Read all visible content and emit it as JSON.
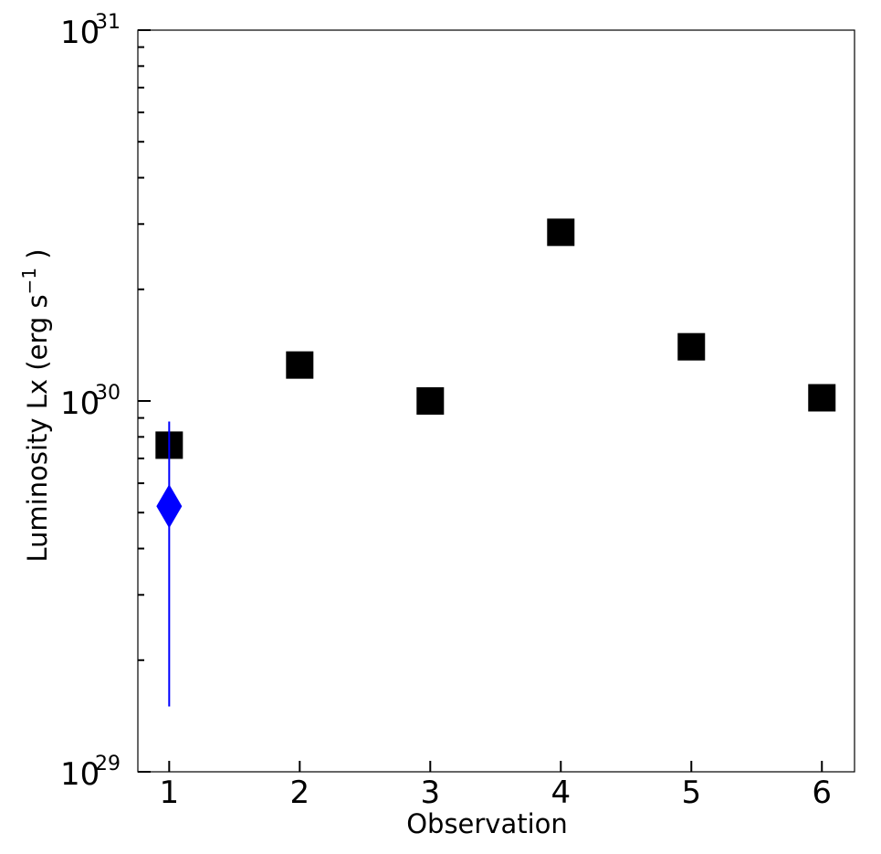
{
  "chart_data": {
    "type": "scatter",
    "title": "",
    "xlabel": "Observation",
    "ylabel": {
      "text": "Luminosity Lx (erg s",
      "sup": "−1",
      "tail": " )"
    },
    "x_scale": "linear",
    "y_scale": "log",
    "xlim": [
      0.76,
      6.25
    ],
    "ylim": [
      1e+29,
      1e+31
    ],
    "x_ticks": [
      {
        "value": 1,
        "label": "1"
      },
      {
        "value": 2,
        "label": "2"
      },
      {
        "value": 3,
        "label": "3"
      },
      {
        "value": 4,
        "label": "4"
      },
      {
        "value": 5,
        "label": "5"
      },
      {
        "value": 6,
        "label": "6"
      }
    ],
    "y_ticks": [
      {
        "value": 1e+29,
        "base": "10",
        "exp": "29"
      },
      {
        "value": 1e+30,
        "base": "10",
        "exp": "30"
      },
      {
        "value": 1e+31,
        "base": "10",
        "exp": "31"
      }
    ],
    "y_minor_ticks": [
      2e+29,
      3e+29,
      4e+29,
      5e+29,
      6e+29,
      7e+29,
      8e+29,
      9e+29,
      2e+30,
      3e+30,
      4e+30,
      5e+30,
      6e+30,
      7e+30,
      8e+30,
      9e+30
    ],
    "grid": false,
    "legend": "none",
    "series": [
      {
        "marker": "square",
        "color": "#000000",
        "points": [
          {
            "x": 1,
            "y": 7.6e+29
          },
          {
            "x": 2,
            "y": 1.25e+30
          },
          {
            "x": 3,
            "y": 1e+30
          },
          {
            "x": 4,
            "y": 2.85e+30
          },
          {
            "x": 5,
            "y": 1.4e+30
          },
          {
            "x": 6,
            "y": 1.02e+30,
            "yerr": [
              9.5e+29,
              1.1e+30
            ]
          }
        ]
      },
      {
        "marker": "diamond",
        "color": "#0000ff",
        "points": [
          {
            "x": 1,
            "y": 5.2e+29,
            "yerr": [
              1.5e+29,
              8.8e+29
            ]
          }
        ]
      }
    ]
  }
}
